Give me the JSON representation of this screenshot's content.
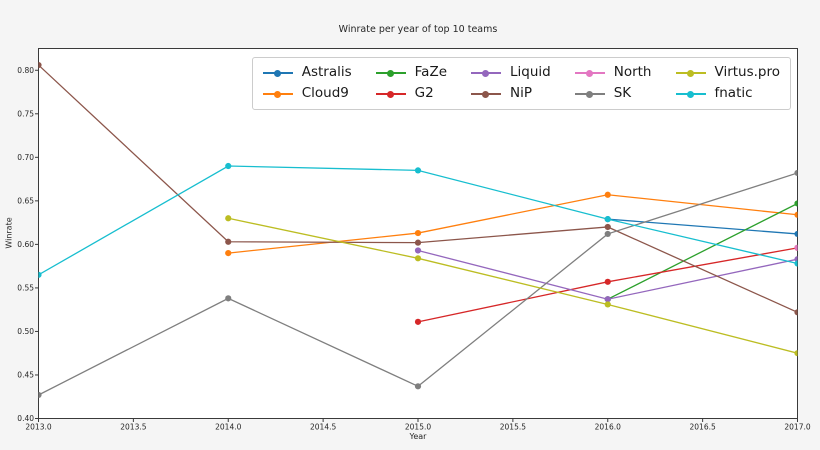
{
  "chart_data": {
    "type": "line",
    "title": "Winrate per year of top 10 teams",
    "xlabel": "Year",
    "ylabel": "Winrate",
    "xlim": [
      2013.0,
      2017.0
    ],
    "ylim": [
      0.4,
      0.825
    ],
    "xticks": [
      2013.0,
      2013.5,
      2014.0,
      2014.5,
      2015.0,
      2015.5,
      2016.0,
      2016.5,
      2017.0
    ],
    "xtick_labels": [
      "2013.0",
      "2013.5",
      "2014.0",
      "2014.5",
      "2015.0",
      "2015.5",
      "2016.0",
      "2016.5",
      "2017.0"
    ],
    "yticks": [
      0.4,
      0.45,
      0.5,
      0.55,
      0.6,
      0.65,
      0.7,
      0.75,
      0.8
    ],
    "ytick_labels": [
      "0.40",
      "0.45",
      "0.50",
      "0.55",
      "0.60",
      "0.65",
      "0.70",
      "0.75",
      "0.80"
    ],
    "grid": false,
    "legend_position": "upper right, 2 rows x 5 columns, column-major order",
    "series": [
      {
        "name": "Astralis",
        "color": "#1f77b4",
        "x": [
          2016,
          2017
        ],
        "y": [
          0.629,
          0.612
        ]
      },
      {
        "name": "Cloud9",
        "color": "#ff7f0e",
        "x": [
          2014,
          2015,
          2016,
          2017
        ],
        "y": [
          0.59,
          0.613,
          0.657,
          0.634
        ]
      },
      {
        "name": "FaZe",
        "color": "#2ca02c",
        "x": [
          2016,
          2017
        ],
        "y": [
          0.537,
          0.647
        ]
      },
      {
        "name": "G2",
        "color": "#d62728",
        "x": [
          2015,
          2016,
          2017
        ],
        "y": [
          0.511,
          0.557,
          0.596
        ]
      },
      {
        "name": "Liquid",
        "color": "#9467bd",
        "x": [
          2015,
          2016,
          2017
        ],
        "y": [
          0.593,
          0.537,
          0.583
        ]
      },
      {
        "name": "NiP",
        "color": "#8c564b",
        "x": [
          2013,
          2014,
          2015,
          2016,
          2017
        ],
        "y": [
          0.806,
          0.603,
          0.602,
          0.62,
          0.522
        ]
      },
      {
        "name": "North",
        "color": "#e377c2",
        "x": [
          2017
        ],
        "y": [
          0.596
        ]
      },
      {
        "name": "SK",
        "color": "#7f7f7f",
        "x": [
          2013,
          2014,
          2015,
          2016,
          2017
        ],
        "y": [
          0.427,
          0.538,
          0.437,
          0.612,
          0.682
        ]
      },
      {
        "name": "Virtus.pro",
        "color": "#bcbd22",
        "x": [
          2014,
          2015,
          2016,
          2017
        ],
        "y": [
          0.63,
          0.584,
          0.531,
          0.475
        ]
      },
      {
        "name": "fnatic",
        "color": "#17becf",
        "x": [
          2013,
          2014,
          2015,
          2016,
          2017
        ],
        "y": [
          0.565,
          0.69,
          0.685,
          0.629,
          0.578
        ]
      }
    ],
    "colors": {
      "figure_background": "#f5f5f5",
      "axes_background": "#ffffff",
      "spine": "#3a3a3a",
      "text": "#262626"
    }
  }
}
